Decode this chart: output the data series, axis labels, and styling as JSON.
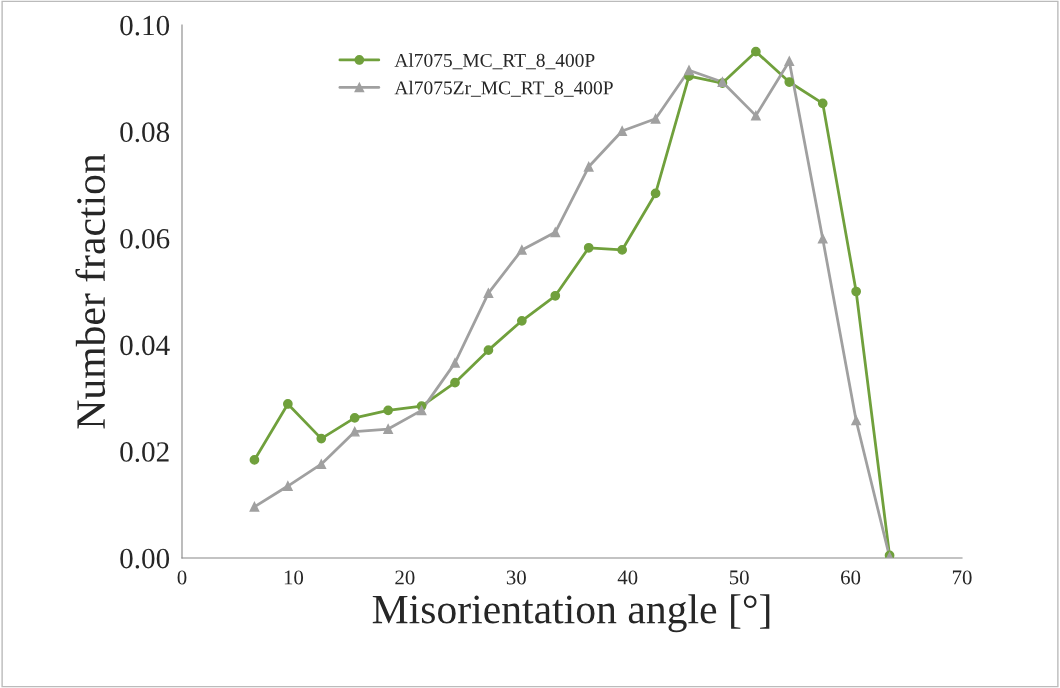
{
  "chart_data": {
    "type": "line",
    "xlabel": "Misorientation angle [°]",
    "ylabel": "Number fraction",
    "x": [
      6.5,
      9.5,
      12.5,
      15.5,
      18.5,
      21.5,
      24.5,
      27.5,
      30.5,
      33.5,
      36.5,
      39.5,
      42.5,
      45.5,
      48.5,
      51.5,
      54.5,
      57.5,
      60.5,
      63.5
    ],
    "series": [
      {
        "name": "Al7075_MC_RT_8_400P",
        "color": "#70a03c",
        "marker": "circle",
        "values": [
          0.0184,
          0.0289,
          0.0224,
          0.0263,
          0.0277,
          0.0285,
          0.0329,
          0.039,
          0.0445,
          0.0492,
          0.0582,
          0.0578,
          0.0684,
          0.0904,
          0.0891,
          0.095,
          0.0893,
          0.0853,
          0.05,
          0.0005
        ]
      },
      {
        "name": "Al7075Zr_MC_RT_8_400P",
        "color": "#a0a0a0",
        "marker": "triangle",
        "values": [
          0.0096,
          0.0135,
          0.0176,
          0.0237,
          0.0242,
          0.0277,
          0.0366,
          0.0497,
          0.0578,
          0.0611,
          0.0734,
          0.0801,
          0.0824,
          0.0915,
          0.0893,
          0.083,
          0.0932,
          0.0599,
          0.0258,
          0.0002
        ]
      }
    ],
    "xlim": [
      0,
      70
    ],
    "xticks": [
      0,
      10,
      20,
      30,
      40,
      50,
      60,
      70
    ],
    "ylim": [
      0,
      0.1
    ],
    "yticks": [
      {
        "value": 0,
        "label": "0.00"
      },
      {
        "value": 0.02,
        "label": "0.02"
      },
      {
        "value": 0.04,
        "label": "0.04"
      },
      {
        "value": 0.06,
        "label": "0.06"
      },
      {
        "value": 0.08,
        "label": "0.08"
      },
      {
        "value": 0.1,
        "label": "0.10"
      }
    ],
    "grid": false,
    "legend": "top",
    "line_style": "solid"
  }
}
